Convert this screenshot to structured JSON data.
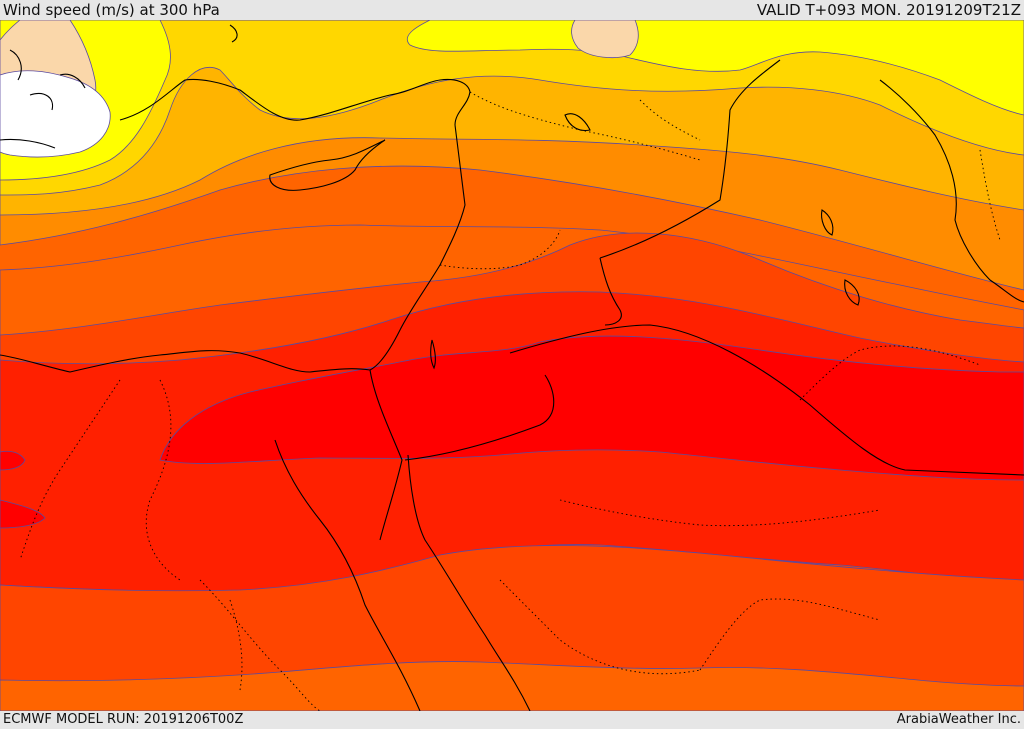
{
  "header": {
    "title": "Wind speed (m/s) at 300 hPa",
    "valid": "VALID T+093 MON. 20191209T21Z"
  },
  "footer": {
    "model_run": "ECMWF MODEL RUN: 20191206T00Z",
    "credit": "ArabiaWeather Inc."
  },
  "colors": {
    "band_0": "#ffffff",
    "band_1": "#fad7aa",
    "band_2": "#ffff00",
    "band_3": "#ffd700",
    "band_4": "#ffb400",
    "band_5": "#ff8c00",
    "band_6": "#ff6400",
    "band_7": "#ff4500",
    "band_8": "#ff2000",
    "band_9": "#ff0000",
    "contour": "#5a4aa0",
    "coastline": "#000000"
  }
}
